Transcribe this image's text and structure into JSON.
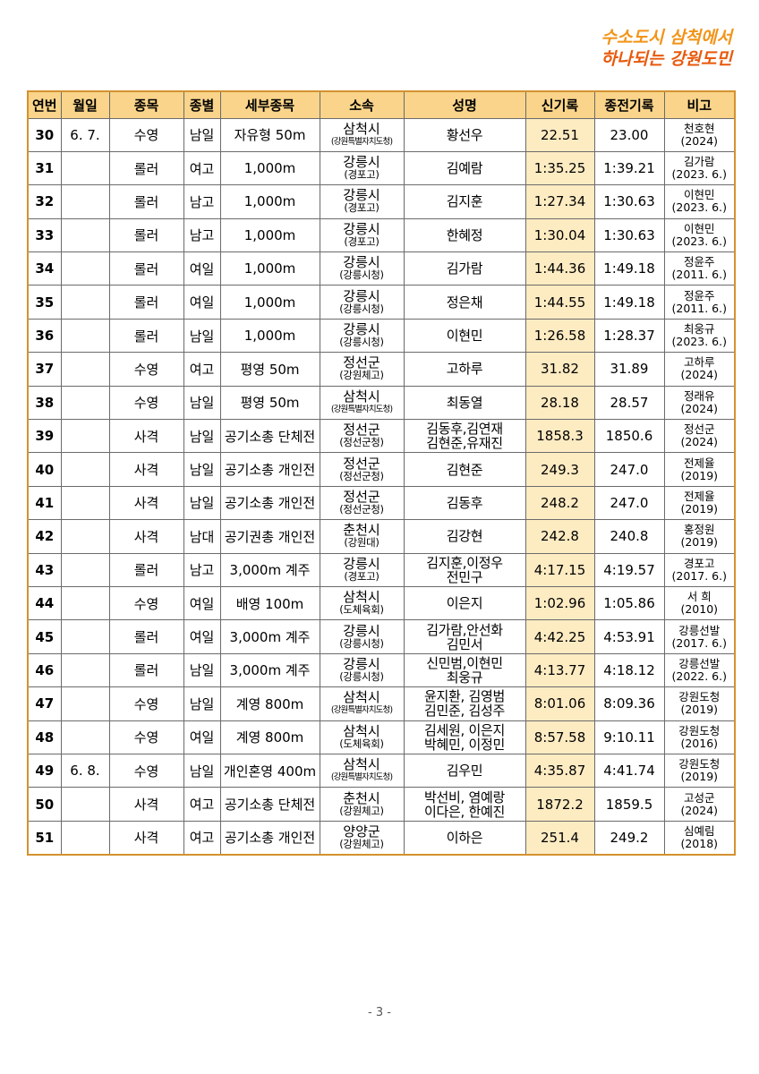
{
  "slogan": {
    "line1": "수소도시 삼척에서",
    "line2": "하나되는 강원도민"
  },
  "columns": [
    "연번",
    "월일",
    "종목",
    "종별",
    "세부종목",
    "소속",
    "성명",
    "신기록",
    "종전기록",
    "비고"
  ],
  "rows": [
    {
      "no": "30",
      "date": "6. 7.",
      "sport": "수영",
      "cls": "남일",
      "event": "자유형 50m",
      "aff1": "삼척시",
      "aff2": "(강원특별자치도청)",
      "name": [
        "황선우"
      ],
      "new": "22.51",
      "prev": "23.00",
      "note": [
        "천호현",
        "(2024)"
      ]
    },
    {
      "no": "31",
      "date": "",
      "sport": "롤러",
      "cls": "여고",
      "event": "1,000m",
      "aff1": "강릉시",
      "aff2": "(경포고)",
      "name": [
        "김예람"
      ],
      "new": "1:35.25",
      "prev": "1:39.21",
      "note": [
        "김가람",
        "(2023. 6.)"
      ]
    },
    {
      "no": "32",
      "date": "",
      "sport": "롤러",
      "cls": "남고",
      "event": "1,000m",
      "aff1": "강릉시",
      "aff2": "(경포고)",
      "name": [
        "김지훈"
      ],
      "new": "1:27.34",
      "prev": "1:30.63",
      "note": [
        "이현민",
        "(2023. 6.)"
      ]
    },
    {
      "no": "33",
      "date": "",
      "sport": "롤러",
      "cls": "남고",
      "event": "1,000m",
      "aff1": "강릉시",
      "aff2": "(경포고)",
      "name": [
        "한혜정"
      ],
      "new": "1:30.04",
      "prev": "1:30.63",
      "note": [
        "이현민",
        "(2023. 6.)"
      ]
    },
    {
      "no": "34",
      "date": "",
      "sport": "롤러",
      "cls": "여일",
      "event": "1,000m",
      "aff1": "강릉시",
      "aff2": "(강릉시청)",
      "name": [
        "김가람"
      ],
      "new": "1:44.36",
      "prev": "1:49.18",
      "note": [
        "정윤주",
        "(2011. 6.)"
      ]
    },
    {
      "no": "35",
      "date": "",
      "sport": "롤러",
      "cls": "여일",
      "event": "1,000m",
      "aff1": "강릉시",
      "aff2": "(강릉시청)",
      "name": [
        "정은채"
      ],
      "new": "1:44.55",
      "prev": "1:49.18",
      "note": [
        "정윤주",
        "(2011. 6.)"
      ]
    },
    {
      "no": "36",
      "date": "",
      "sport": "롤러",
      "cls": "남일",
      "event": "1,000m",
      "aff1": "강릉시",
      "aff2": "(강릉시청)",
      "name": [
        "이현민"
      ],
      "new": "1:26.58",
      "prev": "1:28.37",
      "note": [
        "최웅규",
        "(2023. 6.)"
      ]
    },
    {
      "no": "37",
      "date": "",
      "sport": "수영",
      "cls": "여고",
      "event": "평영 50m",
      "aff1": "정선군",
      "aff2": "(강원체고)",
      "name": [
        "고하루"
      ],
      "new": "31.82",
      "prev": "31.89",
      "note": [
        "고하루",
        "(2024)"
      ]
    },
    {
      "no": "38",
      "date": "",
      "sport": "수영",
      "cls": "남일",
      "event": "평영 50m",
      "aff1": "삼척시",
      "aff2": "(강원특별자치도청)",
      "name": [
        "최동열"
      ],
      "new": "28.18",
      "prev": "28.57",
      "note": [
        "정래유",
        "(2024)"
      ]
    },
    {
      "no": "39",
      "date": "",
      "sport": "사격",
      "cls": "남일",
      "event": "공기소총 단체전",
      "aff1": "정선군",
      "aff2": "(정선군청)",
      "name": [
        "김동후,김연재",
        "김현준,유재진"
      ],
      "new": "1858.3",
      "prev": "1850.6",
      "note": [
        "정선군",
        "(2024)"
      ]
    },
    {
      "no": "40",
      "date": "",
      "sport": "사격",
      "cls": "남일",
      "event": "공기소총 개인전",
      "aff1": "정선군",
      "aff2": "(정선군청)",
      "name": [
        "김현준"
      ],
      "new": "249.3",
      "prev": "247.0",
      "note": [
        "전제율",
        "(2019)"
      ]
    },
    {
      "no": "41",
      "date": "",
      "sport": "사격",
      "cls": "남일",
      "event": "공기소총 개인전",
      "aff1": "정선군",
      "aff2": "(정선군청)",
      "name": [
        "김동후"
      ],
      "new": "248.2",
      "prev": "247.0",
      "note": [
        "전제율",
        "(2019)"
      ]
    },
    {
      "no": "42",
      "date": "",
      "sport": "사격",
      "cls": "남대",
      "event": "공기권총 개인전",
      "aff1": "춘천시",
      "aff2": "(강원대)",
      "name": [
        "김강현"
      ],
      "new": "242.8",
      "prev": "240.8",
      "note": [
        "홍정원",
        "(2019)"
      ]
    },
    {
      "no": "43",
      "date": "",
      "sport": "롤러",
      "cls": "남고",
      "event": "3,000m 계주",
      "aff1": "강릉시",
      "aff2": "(경포고)",
      "name": [
        "김지훈,이정우",
        "전민구"
      ],
      "new": "4:17.15",
      "prev": "4:19.57",
      "note": [
        "경포고",
        "(2017. 6.)"
      ]
    },
    {
      "no": "44",
      "date": "",
      "sport": "수영",
      "cls": "여일",
      "event": "배영 100m",
      "aff1": "삼척시",
      "aff2": "(도체육회)",
      "name": [
        "이은지"
      ],
      "new": "1:02.96",
      "prev": "1:05.86",
      "note": [
        "서 희",
        "(2010)"
      ]
    },
    {
      "no": "45",
      "date": "",
      "sport": "롤러",
      "cls": "여일",
      "event": "3,000m 계주",
      "aff1": "강릉시",
      "aff2": "(강릉시청)",
      "name": [
        "김가람,안선화",
        "김민서"
      ],
      "new": "4:42.25",
      "prev": "4:53.91",
      "note": [
        "강릉선발",
        "(2017. 6.)"
      ]
    },
    {
      "no": "46",
      "date": "",
      "sport": "롤러",
      "cls": "남일",
      "event": "3,000m 계주",
      "aff1": "강릉시",
      "aff2": "(강릉시청)",
      "name": [
        "신민범,이현민",
        "최웅규"
      ],
      "new": "4:13.77",
      "prev": "4:18.12",
      "note": [
        "강릉선발",
        "(2022. 6.)"
      ]
    },
    {
      "no": "47",
      "date": "",
      "sport": "수영",
      "cls": "남일",
      "event": "계영 800m",
      "aff1": "삼척시",
      "aff2": "(강원특별자치도청)",
      "name": [
        "윤지환, 김영범",
        "김민준, 김성주"
      ],
      "new": "8:01.06",
      "prev": "8:09.36",
      "note": [
        "강원도청",
        "(2019)"
      ]
    },
    {
      "no": "48",
      "date": "",
      "sport": "수영",
      "cls": "여일",
      "event": "계영 800m",
      "aff1": "삼척시",
      "aff2": "(도체육회)",
      "name": [
        "김세원, 이은지",
        "박혜민, 이정민"
      ],
      "new": "8:57.58",
      "prev": "9:10.11",
      "note": [
        "강원도청",
        "(2016)"
      ]
    },
    {
      "no": "49",
      "date": "6. 8.",
      "sport": "수영",
      "cls": "남일",
      "event": "개인혼영 400m",
      "aff1": "삼척시",
      "aff2": "(강원특별자치도청)",
      "name": [
        "김우민"
      ],
      "new": "4:35.87",
      "prev": "4:41.74",
      "note": [
        "강원도청",
        "(2019)"
      ]
    },
    {
      "no": "50",
      "date": "",
      "sport": "사격",
      "cls": "여고",
      "event": "공기소총 단체전",
      "aff1": "춘천시",
      "aff2": "(강원체고)",
      "name": [
        "박선비, 염예랑",
        "이다은, 한예진"
      ],
      "new": "1872.2",
      "prev": "1859.5",
      "note": [
        "고성군",
        "(2024)"
      ]
    },
    {
      "no": "51",
      "date": "",
      "sport": "사격",
      "cls": "여고",
      "event": "공기소총 개인전",
      "aff1": "양양군",
      "aff2": "(강원체고)",
      "name": [
        "이하은"
      ],
      "new": "251.4",
      "prev": "249.2",
      "note": [
        "심예림",
        "(2018)"
      ]
    }
  ],
  "page_number": "- 3 -"
}
